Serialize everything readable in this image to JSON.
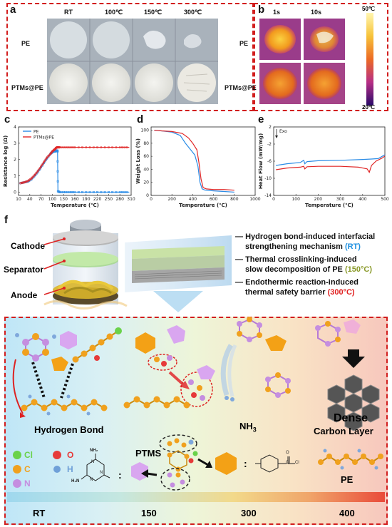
{
  "panels": {
    "a": "a",
    "b": "b",
    "c": "c",
    "d": "d",
    "e": "e",
    "f": "f"
  },
  "panel_a": {
    "temps": [
      "RT",
      "100℃",
      "150℃",
      "300℃"
    ],
    "rows": [
      "PE",
      "PTMs@PE"
    ]
  },
  "panel_b": {
    "times": [
      "1s",
      "10s"
    ],
    "rows": [
      "PE",
      "PTMs@PE"
    ],
    "scale_max": "50℃",
    "scale_min": "20℃"
  },
  "chart_data": [
    {
      "type": "line",
      "panel": "c",
      "xlabel": "Temperature (℃)",
      "ylabel": "Resistance log (Ω)",
      "xticks": [
        10,
        40,
        70,
        100,
        130,
        160,
        190,
        220,
        250,
        280,
        310
      ],
      "yticks": [
        0,
        1,
        2,
        3,
        4
      ],
      "xlim": [
        10,
        310
      ],
      "ylim": [
        -0.2,
        4
      ],
      "series": [
        {
          "name": "PE",
          "color": "#2b8ce6",
          "x": [
            15,
            25,
            35,
            45,
            55,
            65,
            75,
            85,
            95,
            100,
            105,
            108,
            111,
            113,
            114,
            115,
            120,
            140,
            160,
            200,
            240,
            280,
            305
          ],
          "y": [
            0.55,
            0.6,
            0.65,
            0.8,
            1.05,
            1.35,
            1.7,
            2.05,
            2.35,
            2.45,
            2.5,
            2.5,
            2.55,
            2.55,
            2.5,
            0.05,
            0.0,
            0.0,
            0.0,
            0.0,
            0.0,
            0.0,
            0.0
          ]
        },
        {
          "name": "PTMs@PE",
          "color": "#e02727",
          "x": [
            15,
            25,
            35,
            45,
            55,
            65,
            75,
            85,
            95,
            100,
            105,
            108,
            110,
            113,
            115,
            120,
            140,
            160,
            200,
            240,
            280,
            305
          ],
          "y": [
            0.55,
            0.6,
            0.68,
            0.85,
            1.1,
            1.4,
            1.75,
            2.1,
            2.35,
            2.5,
            2.6,
            2.65,
            2.72,
            2.75,
            2.75,
            2.75,
            2.75,
            2.75,
            2.75,
            2.75,
            2.75,
            2.75
          ]
        }
      ],
      "legend": "top-left"
    },
    {
      "type": "line",
      "panel": "d",
      "xlabel": "Temperature (℃)",
      "ylabel": "Weight Loss (%)",
      "xticks": [
        0,
        200,
        400,
        600,
        800,
        1000
      ],
      "yticks": [
        0,
        20,
        40,
        60,
        80,
        100
      ],
      "xlim": [
        0,
        1000
      ],
      "ylim": [
        0,
        105
      ],
      "series": [
        {
          "color": "#2b8ce6",
          "x": [
            30,
            100,
            200,
            280,
            330,
            380,
            420,
            450,
            470,
            490,
            520,
            600,
            700,
            800
          ],
          "y": [
            100,
            99,
            97,
            92,
            80,
            70,
            62,
            45,
            20,
            10,
            8,
            7,
            6,
            5
          ]
        },
        {
          "color": "#e02727",
          "x": [
            30,
            100,
            200,
            300,
            360,
            400,
            440,
            460,
            480,
            500,
            530,
            600,
            700,
            800
          ],
          "y": [
            100,
            99,
            98,
            95,
            88,
            80,
            70,
            50,
            25,
            12,
            10,
            9,
            9,
            8
          ]
        }
      ]
    },
    {
      "type": "line",
      "panel": "e",
      "xlabel": "Temperature (℃)",
      "ylabel": "Heat Flow (mW/mg)",
      "annotation": "Exo",
      "xticks": [
        0,
        100,
        200,
        300,
        400,
        500
      ],
      "yticks": [
        2,
        -2,
        -6,
        -10,
        -14
      ],
      "xlim": [
        0,
        500
      ],
      "ylim": [
        -14,
        2
      ],
      "series": [
        {
          "color": "#2b8ce6",
          "x": [
            10,
            60,
            120,
            135,
            140,
            150,
            200,
            300,
            400,
            440,
            470,
            490,
            500
          ],
          "y": [
            -7,
            -6.6,
            -6.3,
            -5.8,
            -6.6,
            -6.1,
            -5.9,
            -5.8,
            -5.6,
            -5.5,
            -5.4,
            -4.8,
            -4.5
          ]
        },
        {
          "color": "#e02727",
          "x": [
            10,
            60,
            120,
            135,
            140,
            150,
            200,
            300,
            380,
            420,
            430,
            440,
            460,
            490,
            500
          ],
          "y": [
            -8,
            -7.6,
            -7.4,
            -7.2,
            -7.8,
            -7.3,
            -7.2,
            -7.2,
            -7.4,
            -7.8,
            -8.6,
            -7,
            -6,
            -5.2,
            -4.8
          ]
        }
      ]
    }
  ],
  "panel_f": {
    "battery_labels": [
      "Cathode",
      "Separator",
      "Anode"
    ],
    "mechanisms": [
      {
        "line1": "Hydrogen bond-induced interfacial",
        "line2": "strengthening mechanism ",
        "tag": "(RT)",
        "color": "#1e90e0"
      },
      {
        "line1": "Thermal crosslinking-induced",
        "line2": "slow decomposition of PE ",
        "tag": "(150°C)",
        "color": "#8a9a2a"
      },
      {
        "line1": "Endothermic reaction-induced",
        "line2": "thermal safety barrier ",
        "tag": "(300°C)",
        "color": "#e02020"
      }
    ],
    "hydrogen_bond": "Hydrogen Bond",
    "nh3_main": "NH",
    "nh3_sub": "3",
    "dense_line1": "Dense",
    "dense_line2": "Carbon Layer",
    "ptms": "PTMS",
    "pe": "PE",
    "legend_atoms": [
      {
        "sym": "Cl",
        "color": "#6ad24a"
      },
      {
        "sym": "O",
        "color": "#e63a3a"
      },
      {
        "sym": "C",
        "color": "#f0a11e"
      },
      {
        "sym": "H",
        "color": "#6fa0d8"
      },
      {
        "sym": "N",
        "color": "#c58ee0"
      }
    ],
    "melamine_labels": [
      "NH₂",
      "N",
      "N",
      "N",
      "H₂N"
    ],
    "acyl_labels": [
      "O",
      "C",
      "Cl"
    ],
    "colon": ":",
    "temps": [
      "RT",
      "150",
      "300",
      "400"
    ]
  }
}
